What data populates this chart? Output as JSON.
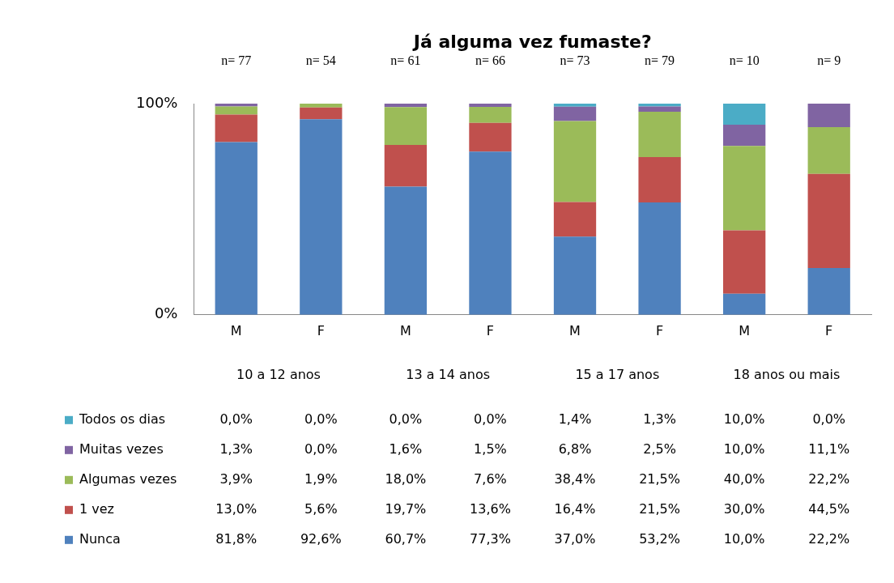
{
  "chart_data": {
    "type": "bar",
    "title": "Já alguma vez fumaste?",
    "stacked": true,
    "categories": [
      "M",
      "F",
      "M",
      "F",
      "M",
      "F",
      "M",
      "F"
    ],
    "ylim": [
      0,
      100
    ],
    "yticks": [
      {
        "value": 0,
        "label": "0%"
      },
      {
        "value": 100,
        "label": "100%"
      }
    ],
    "grid": false,
    "legend": "bottom",
    "annotations": [
      "n= 77",
      "n= 54",
      "n= 61",
      "n= 66",
      "n= 73",
      "n= 79",
      "n= 10",
      "n= 9",
      "10 a 12 anos",
      "13 a 14 anos",
      "15 a 17 anos",
      "18 anos ou mais"
    ],
    "series": [
      {
        "name": "Nunca",
        "color": "#4f81bd",
        "values": [
          81.8,
          92.6,
          60.7,
          77.3,
          37.0,
          53.2,
          10.0,
          22.2
        ],
        "value_labels": [
          "81,8%",
          "92,6%",
          "60,7%",
          "77,3%",
          "37,0%",
          "53,2%",
          "10,0%",
          "22,2%"
        ]
      },
      {
        "name": "1 vez",
        "color": "#c0504d",
        "values": [
          13.0,
          5.6,
          19.7,
          13.6,
          16.4,
          21.5,
          30.0,
          44.5
        ],
        "value_labels": [
          "13,0%",
          "5,6%",
          "19,7%",
          "13,6%",
          "16,4%",
          "21,5%",
          "30,0%",
          "44,5%"
        ]
      },
      {
        "name": "Algumas vezes",
        "color": "#9bbb59",
        "values": [
          3.9,
          1.9,
          18.0,
          7.6,
          38.4,
          21.5,
          40.0,
          22.2
        ],
        "value_labels": [
          "3,9%",
          "1,9%",
          "18,0%",
          "7,6%",
          "38,4%",
          "21,5%",
          "40,0%",
          "22,2%"
        ]
      },
      {
        "name": "Muitas vezes",
        "color": "#8064a2",
        "values": [
          1.3,
          0.0,
          1.6,
          1.5,
          6.8,
          2.5,
          10.0,
          11.1
        ],
        "value_labels": [
          "1,3%",
          "0,0%",
          "1,6%",
          "1,5%",
          "6,8%",
          "2,5%",
          "10,0%",
          "11,1%"
        ]
      },
      {
        "name": "Todos os dias",
        "color": "#4bacc6",
        "values": [
          0.0,
          0.0,
          0.0,
          0.0,
          1.4,
          1.3,
          10.0,
          0.0
        ],
        "value_labels": [
          "0,0%",
          "0,0%",
          "0,0%",
          "0,0%",
          "1,4%",
          "1,3%",
          "10,0%",
          "0,0%"
        ]
      }
    ]
  }
}
